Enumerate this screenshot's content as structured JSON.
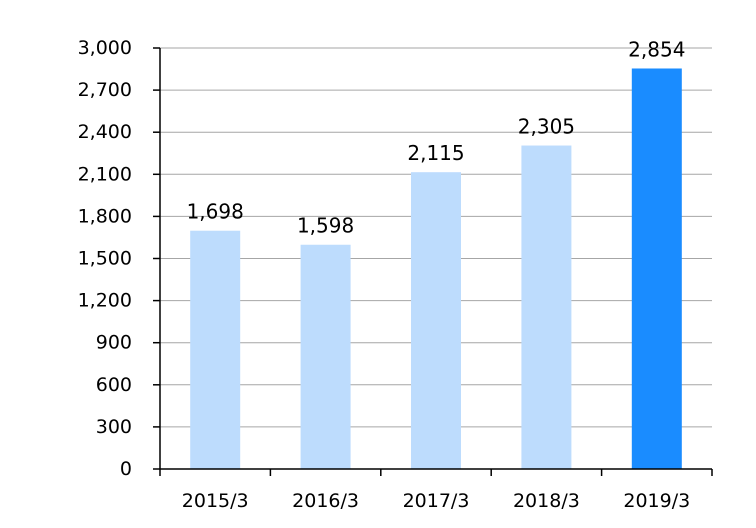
{
  "chart_data": {
    "type": "bar",
    "title": "",
    "xlabel": "",
    "ylabel": "",
    "categories": [
      "2015/3",
      "2016/3",
      "2017/3",
      "2018/3",
      "2019/3"
    ],
    "values": [
      1698,
      1598,
      2115,
      2305,
      2854
    ],
    "value_labels": [
      "1,698",
      "1,598",
      "2,115",
      "2,305",
      "2,854"
    ],
    "ylim": [
      0,
      3000
    ],
    "yticks": [
      0,
      300,
      600,
      900,
      1200,
      1500,
      1800,
      2100,
      2400,
      2700,
      3000
    ],
    "ytick_labels": [
      "0",
      "300",
      "600",
      "900",
      "1,200",
      "1,500",
      "1,800",
      "2,100",
      "2,400",
      "2,700",
      "3,000"
    ],
    "grid": true,
    "legend": "none",
    "colors": {
      "bar": "#bddcfd",
      "highlight_bar": "#1a8cff",
      "gridline": "#a6a6a6",
      "axis": "#000000"
    },
    "highlight_index": 4
  }
}
